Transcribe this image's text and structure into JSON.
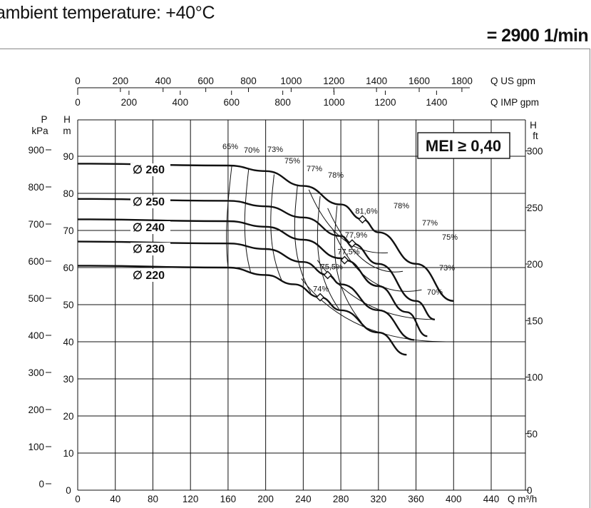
{
  "header": {
    "title": "ambient temperature: +40°C",
    "speed": "= 2900 1/min"
  },
  "chart_data": {
    "type": "line",
    "x_axis": {
      "label": "Q m³/h",
      "range": [
        0,
        440
      ],
      "ticks": [
        0,
        40,
        80,
        120,
        160,
        200,
        240,
        280,
        320,
        360,
        400,
        440
      ]
    },
    "top_axis_us": {
      "label": "Q US gpm",
      "ticks": [
        0,
        200,
        400,
        600,
        800,
        1000,
        1200,
        1400,
        1600,
        1800
      ]
    },
    "top_axis_imp": {
      "label": "Q IMP gpm",
      "ticks": [
        0,
        200,
        400,
        600,
        800,
        1000,
        1200,
        1400
      ]
    },
    "left_axis_h": {
      "label": "H",
      "unit": "m",
      "range": [
        0,
        90
      ],
      "ticks": [
        0,
        10,
        20,
        30,
        40,
        50,
        60,
        70,
        80,
        90
      ]
    },
    "left_axis_p": {
      "label": "P",
      "unit": "kPa",
      "ticks": [
        0,
        100,
        200,
        300,
        400,
        500,
        600,
        700,
        800,
        900
      ]
    },
    "right_axis_h": {
      "label": "H",
      "unit": "ft",
      "ticks": [
        0,
        50,
        100,
        150,
        200,
        250,
        300
      ]
    },
    "grid": true,
    "mei": "MEI ≥ 0,40",
    "series": [
      {
        "name": "∅ 260",
        "x": [
          0,
          160,
          200,
          240,
          280,
          303,
          320,
          360,
          400
        ],
        "y": [
          88,
          87.5,
          86,
          82,
          77,
          73,
          69.5,
          61,
          51
        ]
      },
      {
        "name": "∅ 250",
        "x": [
          0,
          160,
          200,
          240,
          280,
          292,
          320,
          360,
          380
        ],
        "y": [
          78.5,
          78,
          76.5,
          73.5,
          68.5,
          66.5,
          61,
          51,
          46
        ]
      },
      {
        "name": "∅ 240",
        "x": [
          0,
          160,
          200,
          240,
          280,
          284,
          320,
          350,
          372
        ],
        "y": [
          73,
          72.5,
          71,
          67.5,
          62.5,
          62,
          55,
          48,
          41.5
        ]
      },
      {
        "name": "∅ 230",
        "x": [
          0,
          160,
          200,
          240,
          266,
          280,
          320,
          358
        ],
        "y": [
          67,
          66.5,
          65,
          61.5,
          58,
          55.5,
          48.5,
          40.5
        ]
      },
      {
        "name": "∅ 220",
        "x": [
          0,
          160,
          200,
          230,
          258,
          280,
          320,
          350
        ],
        "y": [
          60.5,
          60,
          58,
          55.5,
          52,
          48.5,
          42.5,
          36.5
        ]
      }
    ],
    "bep_points": [
      {
        "label": "81,6%",
        "x": 303,
        "y": 73
      },
      {
        "label": "77,9%",
        "x": 292,
        "y": 66.5
      },
      {
        "label": "77,5%",
        "x": 284,
        "y": 62
      },
      {
        "label": "75,5%",
        "x": 266,
        "y": 58
      },
      {
        "label": "74%",
        "x": 258,
        "y": 52
      }
    ],
    "efficiency_labels": [
      "65%",
      "70%",
      "73%",
      "75%",
      "77%",
      "78%",
      "81,6%",
      "78%",
      "77%",
      "75%",
      "73%",
      "70%"
    ]
  }
}
